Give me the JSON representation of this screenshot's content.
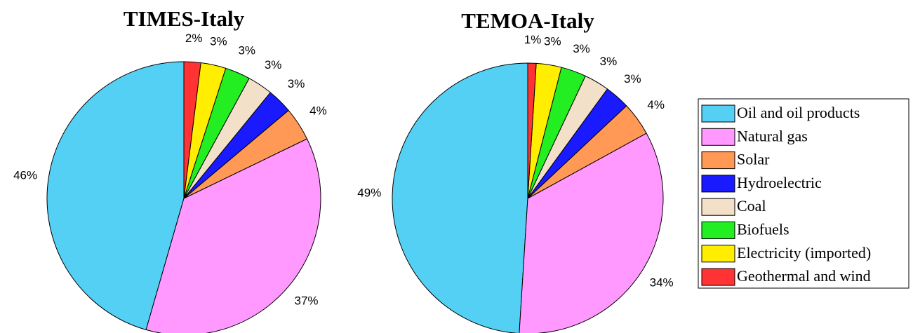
{
  "chart_data": [
    {
      "type": "pie",
      "title": "TIMES-Italy",
      "categories": [
        "Oil and oil products",
        "Natural gas",
        "Solar",
        "Hydroelectric",
        "Coal",
        "Biofuels",
        "Electricity (imported)",
        "Geothermal and wind"
      ],
      "values": [
        46,
        37,
        4,
        3,
        3,
        3,
        3,
        2
      ],
      "value_labels": [
        "46%",
        "37%",
        "4%",
        "3%",
        "3%",
        "3%",
        "3%",
        "2%"
      ],
      "colors": [
        "#55d0f5",
        "#ff99ff",
        "#ff9955",
        "#1a1aff",
        "#f2e0c8",
        "#22ee22",
        "#ffee00",
        "#ff3333"
      ]
    },
    {
      "type": "pie",
      "title": "TEMOA-Italy",
      "categories": [
        "Oil and oil products",
        "Natural gas",
        "Solar",
        "Hydroelectric",
        "Coal",
        "Biofuels",
        "Electricity (imported)",
        "Geothermal and wind"
      ],
      "values": [
        49,
        34,
        4,
        3,
        3,
        3,
        3,
        1
      ],
      "value_labels": [
        "49%",
        "34%",
        "4%",
        "3%",
        "3%",
        "3%",
        "3%",
        "1%"
      ],
      "colors": [
        "#55d0f5",
        "#ff99ff",
        "#ff9955",
        "#1a1aff",
        "#f2e0c8",
        "#22ee22",
        "#ffee00",
        "#ff3333"
      ]
    }
  ]
}
